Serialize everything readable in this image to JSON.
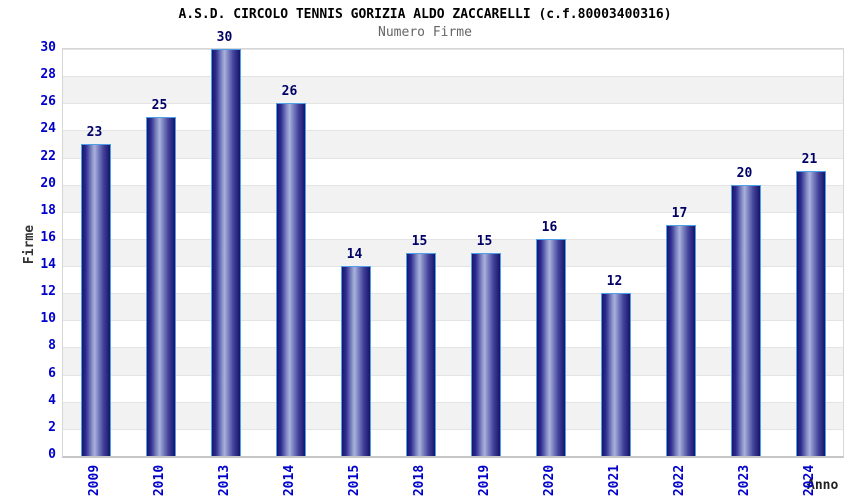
{
  "header": {
    "title": "A.S.D. CIRCOLO TENNIS GORIZIA ALDO ZACCARELLI (c.f.80003400316)",
    "subtitle": "Numero Firme"
  },
  "chart_data": {
    "type": "bar",
    "title": "A.S.D. CIRCOLO TENNIS GORIZIA ALDO ZACCARELLI (c.f.80003400316)",
    "subtitle": "Numero Firme",
    "categories": [
      "2009",
      "2010",
      "2013",
      "2014",
      "2015",
      "2018",
      "2019",
      "2020",
      "2021",
      "2022",
      "2023",
      "2024"
    ],
    "values": [
      23,
      25,
      30,
      26,
      14,
      15,
      15,
      16,
      12,
      17,
      20,
      21
    ],
    "xlabel": "Anno",
    "ylabel": "Firme",
    "ylim": [
      0,
      30
    ],
    "ytick_step": 2,
    "grid": "horizontal-bands-alternating",
    "legend": "none",
    "colors": {
      "bar_edge": "#17176f",
      "bar_highlight": "#aab2dc",
      "bar_cap_border": "#4f9fe8",
      "axis_tick_label": "#0000cc",
      "value_label": "#000066",
      "title": "#000000",
      "subtitle": "#666666",
      "axis_name_label": "#333333",
      "band_gray": "#f2f2f2",
      "band_white": "#ffffff"
    }
  }
}
